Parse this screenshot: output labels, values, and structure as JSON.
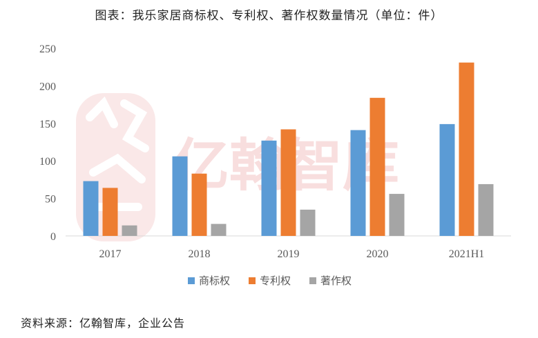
{
  "title": "图表：我乐家居商标权、专利权、著作权数量情况（单位：件）",
  "source": "资料来源：亿翰智库，企业公告",
  "watermark": "亿翰智库",
  "chart_data": {
    "type": "bar",
    "categories": [
      "2017",
      "2018",
      "2019",
      "2020",
      "2021H1"
    ],
    "series": [
      {
        "name": "商标权",
        "color": "#5b9bd5",
        "values": [
          73,
          106,
          127,
          141,
          149
        ]
      },
      {
        "name": "专利权",
        "color": "#ed7d31",
        "values": [
          64,
          83,
          142,
          184,
          231
        ]
      },
      {
        "name": "著作权",
        "color": "#a5a5a5",
        "values": [
          14,
          16,
          35,
          56,
          69
        ]
      }
    ],
    "ylim": [
      0,
      250
    ],
    "yticks": [
      0,
      50,
      100,
      150,
      200,
      250
    ],
    "grid": false,
    "legend": "bottom"
  }
}
